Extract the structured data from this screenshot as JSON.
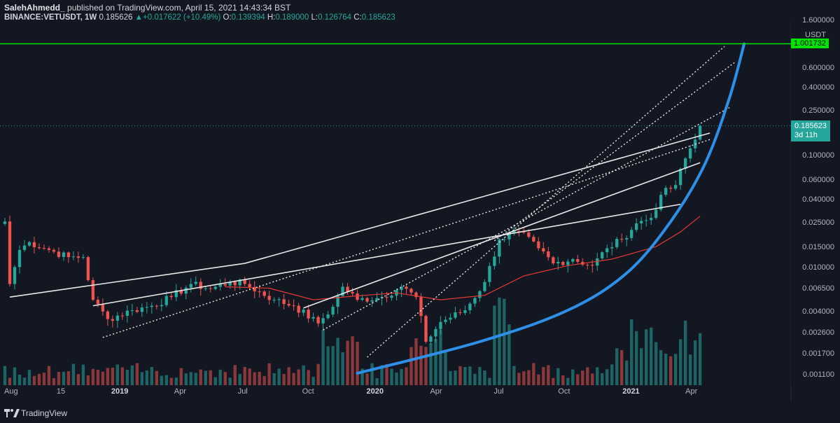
{
  "header": {
    "author": "SalehAhmedd_",
    "published": " published on TradingView.com, April 15, 2021 14:43:34 BST",
    "symbol": "BINANCE:VETUSDT, 1W",
    "last": "0.185626",
    "arrow": "▲",
    "change": "+0.017622 (+10.49%)",
    "o_label": "O:",
    "o_value": "0.139394",
    "h_label": "H:",
    "h_value": "0.189000",
    "l_label": "L:",
    "l_value": "0.126764",
    "c_label": "C:",
    "c_value": "0.185623"
  },
  "footer": {
    "brand": "TradingView"
  },
  "colors": {
    "up": "#26a69a",
    "down": "#ef5350",
    "ma": "#e53935",
    "curve": "#2e8fe6",
    "level": "#00e400"
  },
  "chart_data": {
    "type": "candlestick",
    "yscale": "log",
    "y_unit": "USDT",
    "ylim": [
      0.0009,
      1.6
    ],
    "y_ticks": [
      "1.600000",
      "0.600000",
      "0.400000",
      "0.250000",
      "0.100000",
      "0.060000",
      "0.040000",
      "0.025000",
      "0.015000",
      "0.010000",
      "0.006500",
      "0.004000",
      "0.002600",
      "0.001700",
      "0.001100"
    ],
    "y_tick_values": [
      1.6,
      0.6,
      0.4,
      0.25,
      0.1,
      0.06,
      0.04,
      0.025,
      0.015,
      0.01,
      0.0065,
      0.004,
      0.0026,
      0.0017,
      0.0011
    ],
    "x_ticks": [
      {
        "label": "Aug",
        "date": "2018-08-01",
        "bold": false
      },
      {
        "label": "15",
        "date": "2018-10-15",
        "bold": false
      },
      {
        "label": "2019",
        "date": "2019-01-01",
        "bold": true
      },
      {
        "label": "Apr",
        "date": "2019-04-01",
        "bold": false
      },
      {
        "label": "Jul",
        "date": "2019-07-01",
        "bold": false
      },
      {
        "label": "Oct",
        "date": "2019-10-01",
        "bold": false
      },
      {
        "label": "2020",
        "date": "2020-01-01",
        "bold": true
      },
      {
        "label": "Apr",
        "date": "2020-04-01",
        "bold": false
      },
      {
        "label": "Jul",
        "date": "2020-07-01",
        "bold": false
      },
      {
        "label": "Oct",
        "date": "2020-10-01",
        "bold": false
      },
      {
        "label": "2021",
        "date": "2021-01-01",
        "bold": true
      },
      {
        "label": "Apr",
        "date": "2021-04-01",
        "bold": false
      }
    ],
    "xlim": [
      "2018-07-16",
      "2021-08-20"
    ],
    "horizontal_level": {
      "value": 1.001732,
      "label": "1.001732"
    },
    "last_price": {
      "value": 0.185623,
      "label": "0.185623",
      "countdown": "3d 11h"
    },
    "anchors": [
      {
        "date": "2018-07-23",
        "close": 0.026
      },
      {
        "date": "2018-07-30",
        "close": 0.0072
      },
      {
        "date": "2018-08-13",
        "close": 0.0145
      },
      {
        "date": "2018-08-27",
        "close": 0.017
      },
      {
        "date": "2018-09-24",
        "close": 0.0145
      },
      {
        "date": "2018-10-22",
        "close": 0.0125
      },
      {
        "date": "2018-11-12",
        "close": 0.0125
      },
      {
        "date": "2018-11-26",
        "close": 0.0052
      },
      {
        "date": "2018-12-17",
        "close": 0.0035
      },
      {
        "date": "2019-01-21",
        "close": 0.0042
      },
      {
        "date": "2019-02-18",
        "close": 0.0046
      },
      {
        "date": "2019-03-18",
        "close": 0.0055
      },
      {
        "date": "2019-04-15",
        "close": 0.0072
      },
      {
        "date": "2019-05-13",
        "close": 0.0065
      },
      {
        "date": "2019-06-10",
        "close": 0.0075
      },
      {
        "date": "2019-07-01",
        "close": 0.0072
      },
      {
        "date": "2019-08-12",
        "close": 0.0052
      },
      {
        "date": "2019-09-09",
        "close": 0.0046
      },
      {
        "date": "2019-10-14",
        "close": 0.0032
      },
      {
        "date": "2019-11-04",
        "close": 0.0045
      },
      {
        "date": "2019-11-18",
        "close": 0.0068
      },
      {
        "date": "2019-12-09",
        "close": 0.0052
      },
      {
        "date": "2020-01-13",
        "close": 0.0055
      },
      {
        "date": "2020-02-10",
        "close": 0.0068
      },
      {
        "date": "2020-03-02",
        "close": 0.0055
      },
      {
        "date": "2020-03-16",
        "close": 0.0022
      },
      {
        "date": "2020-04-06",
        "close": 0.0033
      },
      {
        "date": "2020-05-11",
        "close": 0.0042
      },
      {
        "date": "2020-06-08",
        "close": 0.0075
      },
      {
        "date": "2020-06-29",
        "close": 0.018
      },
      {
        "date": "2020-07-27",
        "close": 0.021
      },
      {
        "date": "2020-08-24",
        "close": 0.015
      },
      {
        "date": "2020-09-14",
        "close": 0.011
      },
      {
        "date": "2020-10-12",
        "close": 0.012
      },
      {
        "date": "2020-11-09",
        "close": 0.0105
      },
      {
        "date": "2020-11-30",
        "close": 0.015
      },
      {
        "date": "2020-12-21",
        "close": 0.018
      },
      {
        "date": "2021-01-11",
        "close": 0.025
      },
      {
        "date": "2021-02-01",
        "close": 0.028
      },
      {
        "date": "2021-02-15",
        "close": 0.045
      },
      {
        "date": "2021-03-08",
        "close": 0.055
      },
      {
        "date": "2021-03-22",
        "close": 0.095
      },
      {
        "date": "2021-04-05",
        "close": 0.14
      },
      {
        "date": "2021-04-12",
        "close": 0.185623
      }
    ],
    "moving_average": [
      {
        "date": "2019-06-03",
        "value": 0.0068
      },
      {
        "date": "2019-08-05",
        "value": 0.0066
      },
      {
        "date": "2019-10-07",
        "value": 0.0052
      },
      {
        "date": "2019-12-02",
        "value": 0.0056
      },
      {
        "date": "2020-02-03",
        "value": 0.006
      },
      {
        "date": "2020-04-06",
        "value": 0.0052
      },
      {
        "date": "2020-06-08",
        "value": 0.0057
      },
      {
        "date": "2020-08-03",
        "value": 0.0085
      },
      {
        "date": "2020-10-05",
        "value": 0.0105
      },
      {
        "date": "2020-12-07",
        "value": 0.012
      },
      {
        "date": "2021-02-08",
        "value": 0.0155
      },
      {
        "date": "2021-03-15",
        "value": 0.021
      },
      {
        "date": "2021-04-12",
        "value": 0.029
      }
    ],
    "trendlines": [
      {
        "style": "solid",
        "from": {
          "date": "2018-07-30",
          "value": 0.0055
        },
        "to": {
          "date": "2019-07-01",
          "value": 0.011
        }
      },
      {
        "style": "solid",
        "from": {
          "date": "2019-07-01",
          "value": 0.011
        },
        "to": {
          "date": "2021-04-26",
          "value": 0.16
        }
      },
      {
        "style": "solid",
        "from": {
          "date": "2018-11-26",
          "value": 0.0046
        },
        "to": {
          "date": "2021-03-15",
          "value": 0.037
        }
      },
      {
        "style": "solid",
        "from": {
          "date": "2019-09-23",
          "value": 0.0044
        },
        "to": {
          "date": "2021-04-12",
          "value": 0.087
        }
      },
      {
        "style": "dotted",
        "from": {
          "date": "2018-12-10",
          "value": 0.0024
        },
        "to": {
          "date": "2021-04-26",
          "value": 0.14
        }
      },
      {
        "style": "dotted",
        "from": {
          "date": "2019-10-21",
          "value": 0.0028
        },
        "to": {
          "date": "2021-05-24",
          "value": 0.27
        }
      },
      {
        "style": "dotted",
        "from": {
          "date": "2019-12-23",
          "value": 0.0016
        },
        "to": {
          "date": "2021-05-17",
          "value": 0.95
        }
      },
      {
        "style": "dotted",
        "from": {
          "date": "2020-06-22",
          "value": 0.0175
        },
        "to": {
          "date": "2021-05-31",
          "value": 0.68
        }
      }
    ],
    "parabolic_curve": [
      {
        "date": "2019-12-09",
        "value": 0.00115
      },
      {
        "date": "2020-06-01",
        "value": 0.0022
      },
      {
        "date": "2020-10-05",
        "value": 0.0042
      },
      {
        "date": "2020-12-28",
        "value": 0.009
      },
      {
        "date": "2021-03-01",
        "value": 0.026
      },
      {
        "date": "2021-04-19",
        "value": 0.085
      },
      {
        "date": "2021-05-24",
        "value": 0.33
      },
      {
        "date": "2021-06-14",
        "value": 1.0
      }
    ]
  }
}
